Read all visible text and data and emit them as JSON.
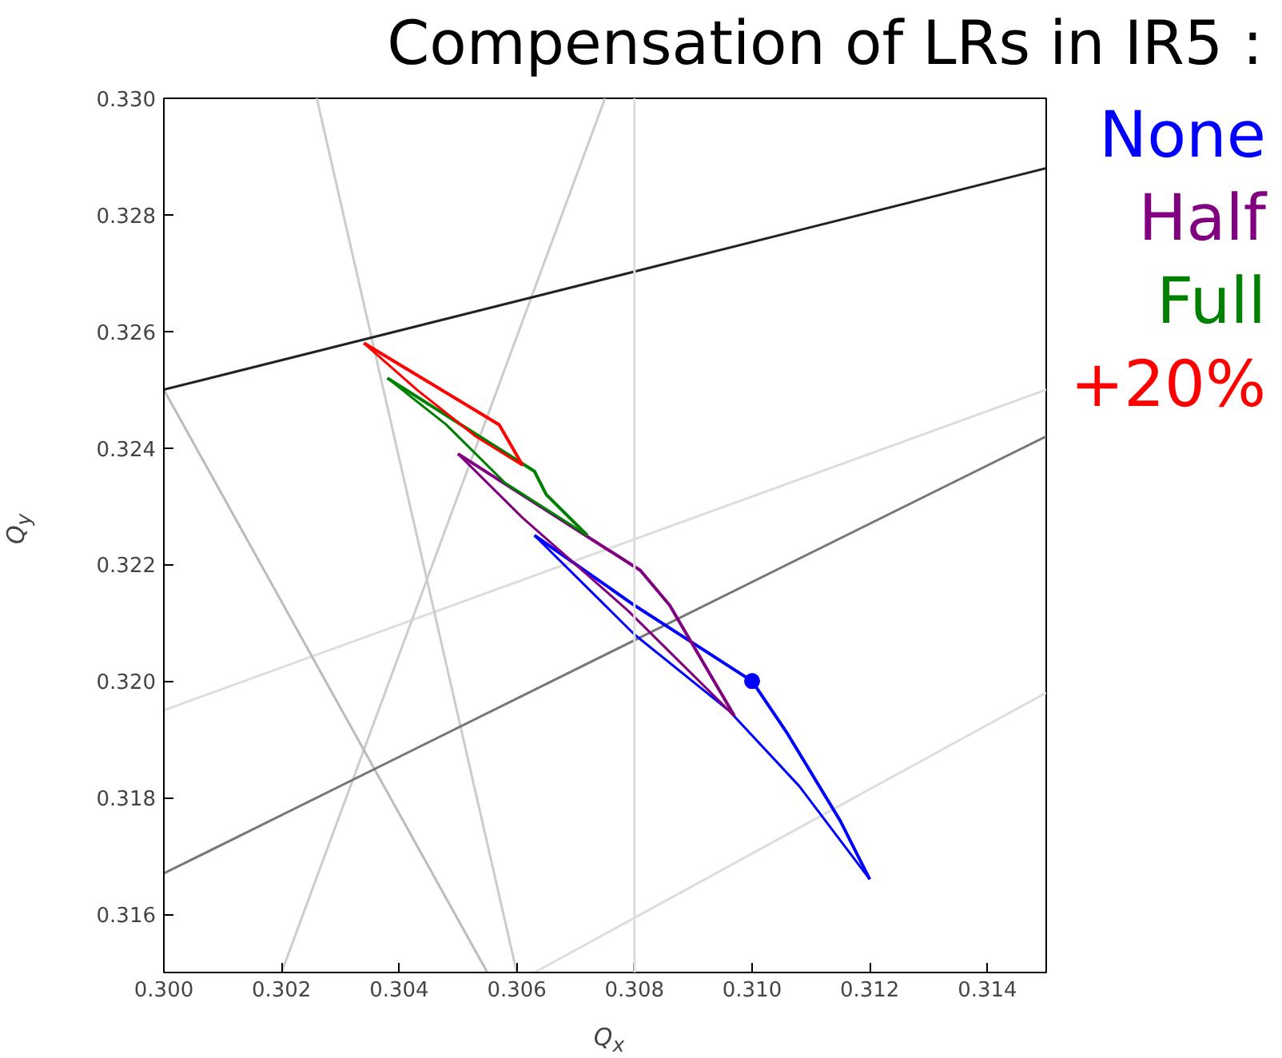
{
  "chart_data": {
    "type": "line",
    "title": "Compensation of LRs in IR5 :",
    "xlabel": "Q$_{x}$",
    "ylabel": "Q$_{y}$",
    "legend": "right",
    "xlim": [
      0.3,
      0.315
    ],
    "ylim": [
      0.315,
      0.33
    ],
    "xticks": [
      {
        "value": 0.3,
        "label": "0.300"
      },
      {
        "value": 0.302,
        "label": "0.302"
      },
      {
        "value": 0.304,
        "label": "0.304"
      },
      {
        "value": 0.306,
        "label": "0.306"
      },
      {
        "value": 0.308,
        "label": "0.308"
      },
      {
        "value": 0.31,
        "label": "0.310"
      },
      {
        "value": 0.312,
        "label": "0.312"
      },
      {
        "value": 0.314,
        "label": "0.314"
      }
    ],
    "yticks": [
      {
        "value": 0.316,
        "label": "0.316"
      },
      {
        "value": 0.318,
        "label": "0.318"
      },
      {
        "value": 0.32,
        "label": "0.320"
      },
      {
        "value": 0.322,
        "label": "0.322"
      },
      {
        "value": 0.324,
        "label": "0.324"
      },
      {
        "value": 0.326,
        "label": "0.326"
      },
      {
        "value": 0.328,
        "label": "0.328"
      },
      {
        "value": 0.33,
        "label": "0.330"
      }
    ],
    "marker": "none",
    "ref_lines": [
      {
        "axis": "x",
        "value": 0.308,
        "color": "#dddddd"
      }
    ],
    "series": [
      {
        "color": "#dddddd",
        "x": [
          0.3,
          0.315
        ],
        "values": [
          0.3195,
          0.325
        ]
      },
      {
        "color": "#dddddd",
        "x": [
          0.3063,
          0.315
        ],
        "values": [
          0.315,
          0.3198
        ]
      },
      {
        "color": "#cccccc",
        "x": [
          0.3026,
          0.306
        ],
        "values": [
          0.33,
          0.315
        ]
      },
      {
        "color": "#cccccc",
        "x": [
          0.302,
          0.3075
        ],
        "values": [
          0.315,
          0.33
        ]
      },
      {
        "color": "#bbbbbb",
        "x": [
          0.3,
          0.3055
        ],
        "values": [
          0.325,
          0.315
        ]
      },
      {
        "color": "#777777",
        "x": [
          0.3,
          0.315
        ],
        "values": [
          0.3167,
          0.3242
        ]
      },
      {
        "color": "#222222",
        "x": [
          0.3,
          0.315
        ],
        "values": [
          0.325,
          0.3288
        ]
      },
      {
        "name": "None",
        "color": "#0000ff",
        "x": [
          0.3063,
          0.308,
          0.31,
          0.3106,
          0.3115,
          0.312
        ],
        "values": [
          0.3225,
          0.3213,
          0.32,
          0.3191,
          0.3176,
          0.3166
        ]
      },
      {
        "color": "#0000ff",
        "x": [
          0.3063,
          0.308,
          0.3096,
          0.3108,
          0.312
        ],
        "values": [
          0.3225,
          0.3208,
          0.3195,
          0.3182,
          0.3166
        ]
      },
      {
        "type": "scatter",
        "marker": "circle",
        "color": "#0000ff",
        "x": [
          0.31
        ],
        "values": [
          0.32
        ]
      },
      {
        "name": "Half",
        "color": "#800080",
        "x": [
          0.305,
          0.3081,
          0.3086,
          0.3097
        ],
        "values": [
          0.3239,
          0.3219,
          0.3213,
          0.3194
        ]
      },
      {
        "color": "#800080",
        "x": [
          0.305,
          0.3061,
          0.3079,
          0.3097
        ],
        "values": [
          0.3239,
          0.3228,
          0.3212,
          0.3194
        ]
      },
      {
        "name": "Full",
        "color": "#008000",
        "x": [
          0.3038,
          0.3063,
          0.3065,
          0.3072
        ],
        "values": [
          0.3252,
          0.3236,
          0.3232,
          0.3225
        ]
      },
      {
        "color": "#008000",
        "x": [
          0.3038,
          0.3048,
          0.3058,
          0.3072
        ],
        "values": [
          0.3252,
          0.3244,
          0.3234,
          0.3225
        ]
      },
      {
        "name": "+20%",
        "color": "#ff0000",
        "x": [
          0.3034,
          0.3057,
          0.3061
        ],
        "values": [
          0.3258,
          0.3244,
          0.3237
        ]
      },
      {
        "color": "#ff0000",
        "x": [
          0.3034,
          0.3043,
          0.3053,
          0.3061
        ],
        "values": [
          0.3258,
          0.325,
          0.3242,
          0.3237
        ]
      }
    ]
  }
}
